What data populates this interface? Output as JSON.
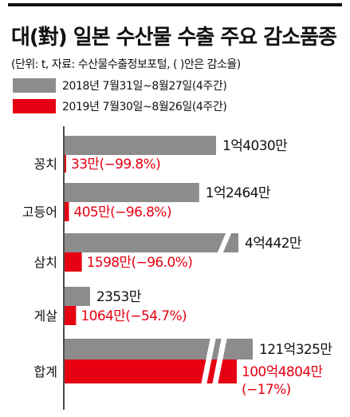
{
  "title": "대(對) 일본 수산물 수출 주요 감소품종",
  "subtitle": "(단위: t, 자료: 수산물수출정보포털, (   )안은 감소율)",
  "colors": {
    "series_2018": "#8c8c8c",
    "series_2019": "#e60012",
    "text": "#111111"
  },
  "legend": [
    {
      "label": "2018년 7월31일~8월27일(4주간)"
    },
    {
      "label": "2019년 7월30일~8월26일(4주간)"
    }
  ],
  "chart_data": {
    "type": "bar",
    "orientation": "horizontal",
    "categories": [
      "꽁치",
      "고등어",
      "삼치",
      "게살",
      "합계"
    ],
    "series": [
      {
        "name": "2018년 7월31일~8월27일(4주간)",
        "values": [
          14030,
          12464,
          40442,
          2353,
          1210325
        ],
        "labels": [
          "1억4030만",
          "1억2464만",
          "4억442만",
          "2353만",
          "121억325만"
        ]
      },
      {
        "name": "2019년 7월30일~8월26일(4주간)",
        "values": [
          33,
          405,
          1598,
          1064,
          1004804
        ],
        "labels": [
          "33만(−99.8%)",
          "405만(−96.8%)",
          "1598만(−96.0%)",
          "1064만(−54.7%)",
          "100억4804만"
        ],
        "label_second_line": [
          "",
          "",
          "",
          "",
          "(−17%)"
        ]
      }
    ],
    "axis_breaks": {
      "삼치": 1,
      "합계": 2
    }
  }
}
